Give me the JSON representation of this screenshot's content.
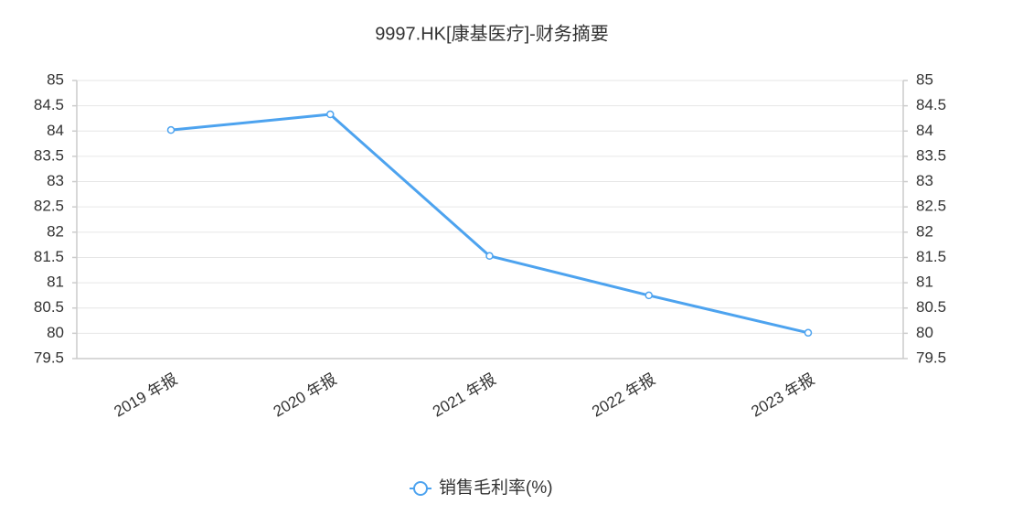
{
  "chart_data": {
    "type": "line",
    "title": "9997.HK[康基医疗]-财务摘要",
    "categories": [
      "2019 年报",
      "2020 年报",
      "2021 年报",
      "2022 年报",
      "2023 年报"
    ],
    "series": [
      {
        "name": "销售毛利率(%)",
        "color": "#4da3ef",
        "values": [
          84.02,
          84.33,
          81.53,
          80.75,
          80.01
        ]
      }
    ],
    "ylim": [
      79.5,
      85
    ],
    "yticks": [
      79.5,
      80,
      80.5,
      81,
      81.5,
      82,
      82.5,
      83,
      83.5,
      84,
      84.5,
      85
    ],
    "y2lim": [
      79.5,
      85
    ],
    "y2ticks": [
      79.5,
      80,
      80.5,
      81,
      81.5,
      82,
      82.5,
      83,
      83.5,
      84,
      84.5,
      85
    ],
    "grid": true,
    "legend": "bottom"
  }
}
